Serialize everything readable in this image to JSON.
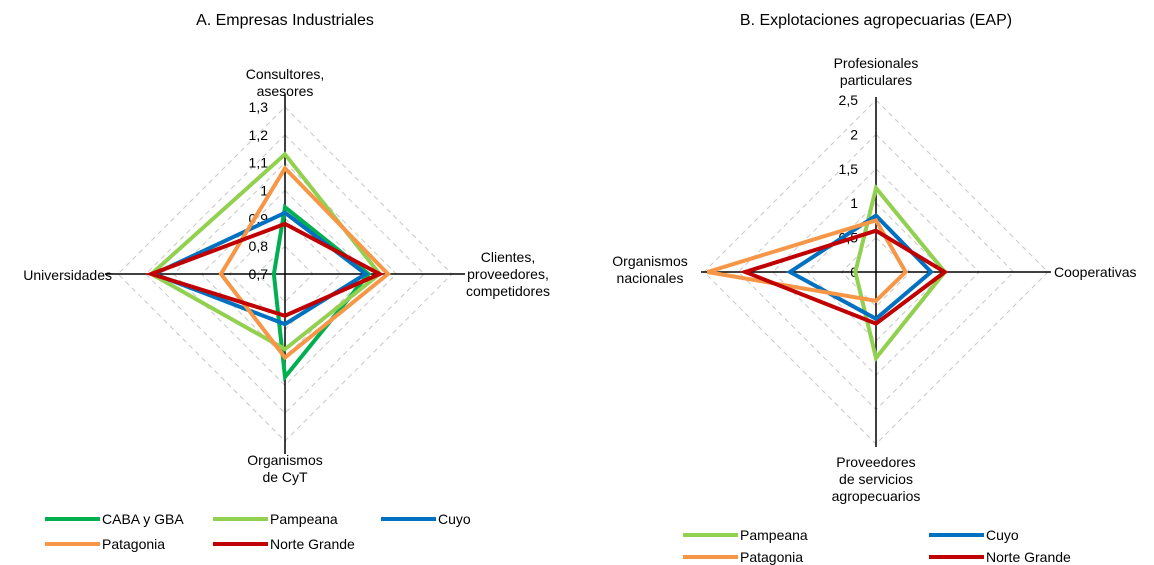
{
  "chart_data": [
    {
      "type": "radar",
      "title": "A. Empresas Industriales",
      "axes": [
        [
          "Consultores,",
          "asesores"
        ],
        [
          "Clientes,",
          "proveedores,",
          "competidores"
        ],
        [
          "Organismos",
          "de CyT"
        ],
        [
          "Universidades"
        ]
      ],
      "ticks": [
        "0,7",
        "0,8",
        "0,9",
        "1",
        "1,1",
        "1,2",
        "1,3"
      ],
      "range": [
        0.7,
        1.3
      ],
      "grid": true,
      "legend_position": "bottom",
      "series": [
        {
          "name": "CABA y GBA",
          "color": "#00b050",
          "values": [
            0.94,
            1.0,
            1.07,
            0.74
          ]
        },
        {
          "name": "Pampeana",
          "color": "#92d050",
          "values": [
            1.13,
            1.04,
            0.97,
            1.18
          ]
        },
        {
          "name": "Cuyo",
          "color": "#0070c0",
          "values": [
            0.92,
            0.99,
            0.88,
            1.17
          ]
        },
        {
          "name": "Patagonia",
          "color": "#f79646",
          "values": [
            1.08,
            1.07,
            1.0,
            0.93
          ]
        },
        {
          "name": "Norte Grande",
          "color": "#c00000",
          "values": [
            0.88,
            1.04,
            0.85,
            1.18
          ]
        }
      ]
    },
    {
      "type": "radar",
      "title": "B. Explotaciones agropecuarias (EAP)",
      "axes": [
        [
          "Profesionales",
          "particulares"
        ],
        [
          "Cooperativas"
        ],
        [
          "Proveedores",
          "de servicios",
          "agropecuarios"
        ],
        [
          "Organismos",
          "nacionales"
        ]
      ],
      "ticks": [
        "0",
        "0,5",
        "1",
        "1,5",
        "2",
        "2,5"
      ],
      "range": [
        0,
        2.5
      ],
      "grid": true,
      "legend_position": "bottom",
      "series": [
        {
          "name": "Pampeana",
          "color": "#92d050",
          "values": [
            1.22,
            1.0,
            1.25,
            0.3
          ]
        },
        {
          "name": "Cuyo",
          "color": "#0070c0",
          "values": [
            0.82,
            0.8,
            0.68,
            1.25
          ]
        },
        {
          "name": "Patagonia",
          "color": "#f79646",
          "values": [
            0.75,
            0.43,
            0.42,
            2.45
          ]
        },
        {
          "name": "Norte Grande",
          "color": "#c00000",
          "values": [
            0.6,
            1.0,
            0.75,
            1.9
          ]
        }
      ]
    }
  ]
}
